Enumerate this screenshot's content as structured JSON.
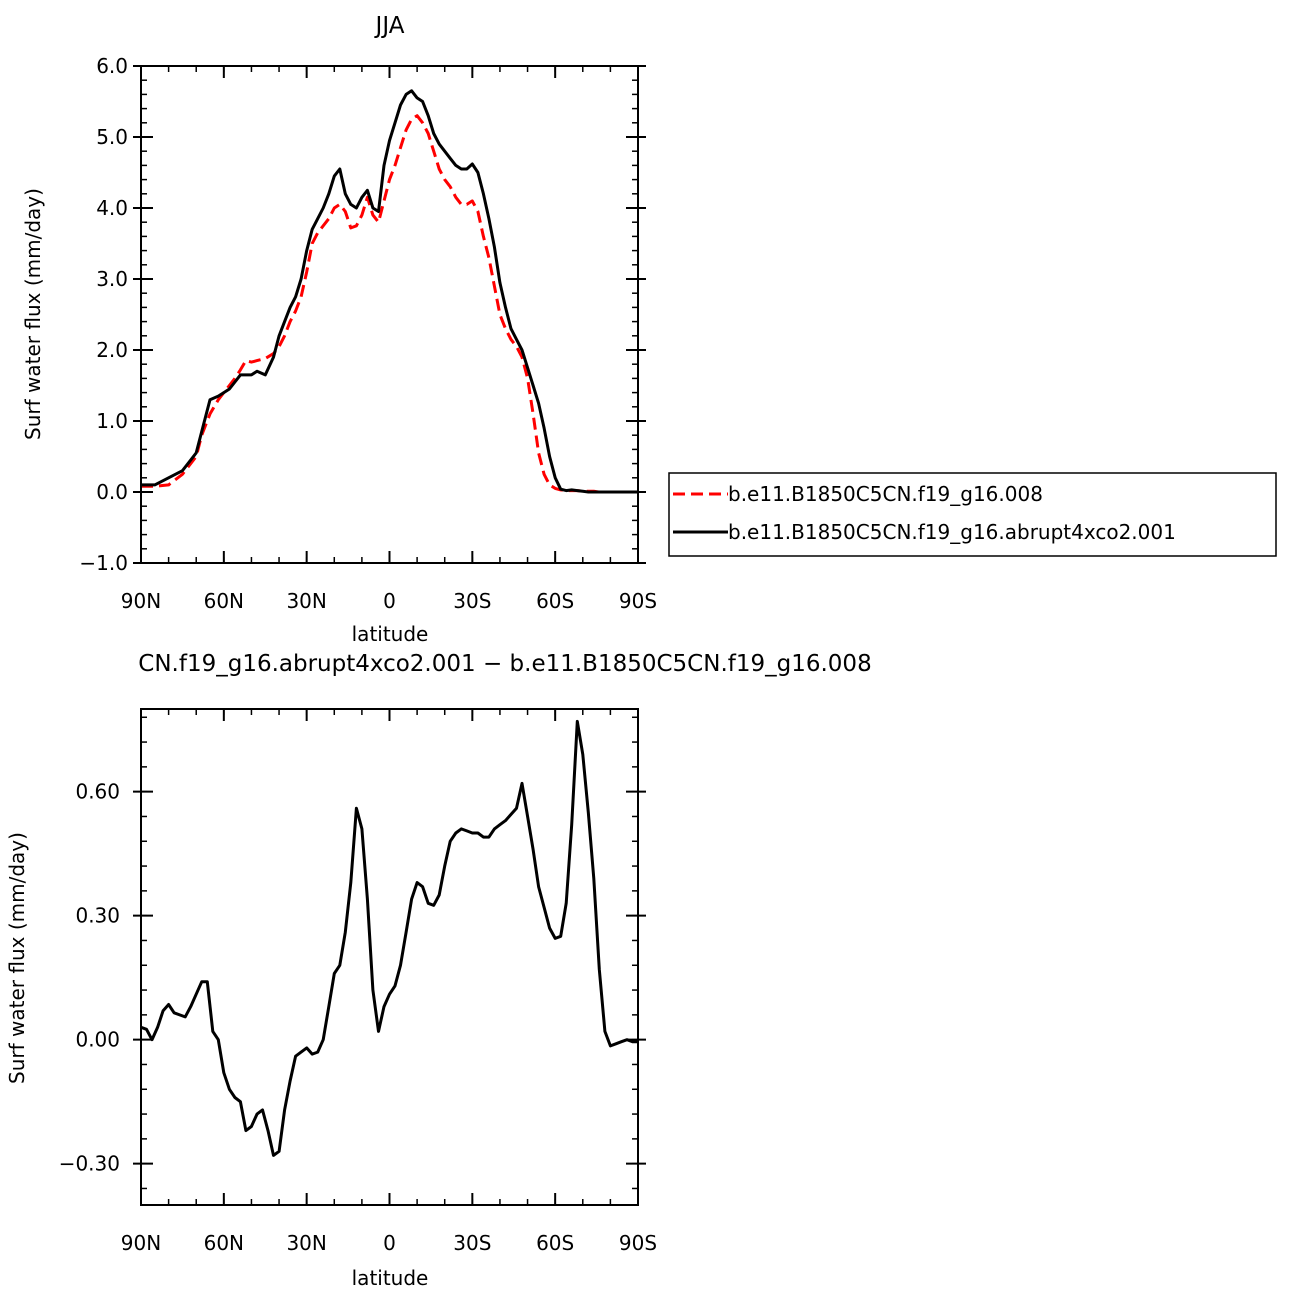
{
  "chart_data": [
    {
      "type": "line",
      "title": "JJA",
      "xlabel": "latitude",
      "ylabel": "Surf water flux (mm/day)",
      "xlim": [
        90,
        -90
      ],
      "ylim": [
        -1.0,
        6.0
      ],
      "x_ticks": [
        90,
        60,
        30,
        0,
        -30,
        -60,
        -90
      ],
      "x_tick_labels": [
        "90N",
        "60N",
        "30N",
        "0",
        "30S",
        "60S",
        "90S"
      ],
      "y_ticks": [
        -1.0,
        0.0,
        1.0,
        2.0,
        3.0,
        4.0,
        5.0,
        6.0
      ],
      "y_tick_labels": [
        "−1.0",
        "0.0",
        "1.0",
        "2.0",
        "3.0",
        "4.0",
        "5.0",
        "6.0"
      ],
      "legend_position": "right",
      "series": [
        {
          "name": "b.e11.B1850C5CN.f19_g16.008",
          "color": "#ff0000",
          "dash": "dashed",
          "x": [
            90,
            85,
            80,
            75,
            72,
            70,
            68,
            65,
            62,
            60,
            58,
            56,
            54,
            52,
            50,
            48,
            45,
            42,
            40,
            38,
            36,
            34,
            32,
            30,
            28,
            26,
            24,
            22,
            20,
            18,
            16,
            14,
            12,
            10,
            8,
            6,
            4,
            2,
            0,
            -2,
            -4,
            -6,
            -8,
            -10,
            -12,
            -14,
            -16,
            -18,
            -20,
            -22,
            -24,
            -26,
            -28,
            -30,
            -32,
            -34,
            -36,
            -38,
            -40,
            -42,
            -44,
            -46,
            -48,
            -50,
            -52,
            -54,
            -56,
            -58,
            -60,
            -62,
            -64,
            -66,
            -68,
            -70,
            -72,
            -74,
            -76,
            -78,
            -80,
            -85,
            -90
          ],
          "y": [
            0.08,
            0.08,
            0.1,
            0.25,
            0.4,
            0.5,
            0.8,
            1.1,
            1.3,
            1.4,
            1.5,
            1.6,
            1.72,
            1.85,
            1.83,
            1.85,
            1.88,
            1.95,
            2.05,
            2.2,
            2.4,
            2.55,
            2.75,
            3.1,
            3.5,
            3.65,
            3.75,
            3.85,
            4.0,
            4.05,
            3.95,
            3.72,
            3.75,
            3.9,
            4.15,
            3.9,
            3.8,
            4.1,
            4.4,
            4.6,
            4.85,
            5.1,
            5.25,
            5.3,
            5.2,
            5.05,
            4.8,
            4.55,
            4.4,
            4.3,
            4.15,
            4.05,
            4.05,
            4.1,
            3.95,
            3.6,
            3.3,
            2.9,
            2.5,
            2.3,
            2.15,
            2.05,
            1.9,
            1.6,
            1.1,
            0.55,
            0.25,
            0.1,
            0.05,
            0.03,
            0.02,
            0.02,
            0.02,
            0.01,
            0.01,
            0.01,
            0.0,
            0.0,
            0.0,
            0.0,
            0.0
          ]
        },
        {
          "name": "b.e11.B1850C5CN.f19_g16.abrupt4xco2.001",
          "color": "#000000",
          "dash": "solid",
          "x": [
            90,
            85,
            80,
            75,
            72,
            70,
            68,
            65,
            62,
            60,
            58,
            56,
            54,
            52,
            50,
            48,
            45,
            42,
            40,
            38,
            36,
            34,
            32,
            30,
            28,
            26,
            24,
            22,
            20,
            18,
            16,
            14,
            12,
            10,
            8,
            6,
            4,
            2,
            0,
            -2,
            -4,
            -6,
            -8,
            -10,
            -12,
            -14,
            -16,
            -18,
            -20,
            -22,
            -24,
            -26,
            -28,
            -30,
            -32,
            -34,
            -36,
            -38,
            -40,
            -42,
            -44,
            -46,
            -48,
            -50,
            -52,
            -54,
            -56,
            -58,
            -60,
            -62,
            -64,
            -66,
            -68,
            -70,
            -72,
            -74,
            -76,
            -78,
            -80,
            -85,
            -90
          ],
          "y": [
            0.1,
            0.1,
            0.2,
            0.3,
            0.45,
            0.55,
            0.85,
            1.3,
            1.35,
            1.4,
            1.45,
            1.55,
            1.65,
            1.65,
            1.65,
            1.7,
            1.65,
            1.9,
            2.2,
            2.4,
            2.6,
            2.75,
            3.0,
            3.4,
            3.7,
            3.85,
            4.0,
            4.2,
            4.45,
            4.55,
            4.2,
            4.05,
            4.0,
            4.15,
            4.25,
            4.0,
            3.95,
            4.6,
            4.95,
            5.2,
            5.45,
            5.6,
            5.65,
            5.55,
            5.5,
            5.3,
            5.05,
            4.9,
            4.8,
            4.7,
            4.6,
            4.55,
            4.55,
            4.62,
            4.5,
            4.2,
            3.85,
            3.45,
            2.95,
            2.6,
            2.3,
            2.15,
            2.0,
            1.75,
            1.5,
            1.25,
            0.9,
            0.5,
            0.2,
            0.04,
            0.02,
            0.03,
            0.02,
            0.01,
            0.0,
            0.0,
            0.0,
            0.0,
            0.0,
            0.0,
            0.0
          ]
        }
      ]
    },
    {
      "type": "line",
      "title": "CN.f19_g16.abrupt4xco2.001 − b.e11.B1850C5CN.f19_g16.008",
      "xlabel": "latitude",
      "ylabel": "Surf water flux (mm/day)",
      "xlim": [
        90,
        -90
      ],
      "ylim": [
        -0.4,
        0.8
      ],
      "x_ticks": [
        90,
        60,
        30,
        0,
        -30,
        -60,
        -90
      ],
      "x_tick_labels": [
        "90N",
        "60N",
        "30N",
        "0",
        "30S",
        "60S",
        "90S"
      ],
      "y_ticks": [
        -0.3,
        0.0,
        0.3,
        0.6
      ],
      "y_tick_labels": [
        "−0.30",
        "0.00",
        "0.30",
        "0.60"
      ],
      "series": [
        {
          "color": "#000000",
          "dash": "solid",
          "x": [
            90,
            88,
            86,
            84,
            82,
            80,
            78,
            76,
            74,
            72,
            70,
            68,
            66,
            64,
            62,
            60,
            58,
            56,
            54,
            52,
            50,
            48,
            46,
            44,
            42,
            40,
            38,
            36,
            34,
            32,
            30,
            28,
            26,
            24,
            22,
            20,
            18,
            16,
            14,
            12,
            10,
            8,
            6,
            4,
            2,
            0,
            -2,
            -4,
            -6,
            -8,
            -10,
            -12,
            -14,
            -16,
            -18,
            -20,
            -22,
            -24,
            -26,
            -28,
            -30,
            -32,
            -34,
            -36,
            -38,
            -40,
            -42,
            -44,
            -46,
            -48,
            -50,
            -52,
            -54,
            -56,
            -58,
            -60,
            -62,
            -64,
            -66,
            -68,
            -70,
            -72,
            -74,
            -76,
            -78,
            -80,
            -82,
            -84,
            -86,
            -88,
            -90
          ],
          "y": [
            0.03,
            0.025,
            0.0,
            0.03,
            0.07,
            0.085,
            0.065,
            0.06,
            0.055,
            0.08,
            0.11,
            0.14,
            0.14,
            0.02,
            0.0,
            -0.08,
            -0.12,
            -0.14,
            -0.15,
            -0.22,
            -0.21,
            -0.18,
            -0.17,
            -0.22,
            -0.28,
            -0.27,
            -0.17,
            -0.1,
            -0.04,
            -0.03,
            -0.02,
            -0.035,
            -0.03,
            0.0,
            0.08,
            0.16,
            0.18,
            0.26,
            0.38,
            0.56,
            0.51,
            0.34,
            0.12,
            0.02,
            0.08,
            0.11,
            0.13,
            0.18,
            0.26,
            0.34,
            0.38,
            0.37,
            0.33,
            0.325,
            0.35,
            0.42,
            0.48,
            0.5,
            0.51,
            0.505,
            0.5,
            0.5,
            0.49,
            0.49,
            0.51,
            0.52,
            0.53,
            0.545,
            0.56,
            0.62,
            0.54,
            0.46,
            0.37,
            0.32,
            0.27,
            0.245,
            0.25,
            0.33,
            0.52,
            0.77,
            0.69,
            0.55,
            0.39,
            0.17,
            0.02,
            -0.015,
            -0.01,
            -0.005,
            0.0,
            -0.005,
            -0.005
          ]
        }
      ]
    }
  ]
}
